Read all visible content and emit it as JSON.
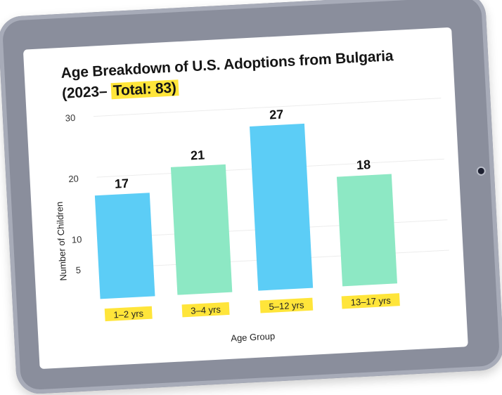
{
  "chart_data": {
    "type": "bar",
    "title": "Age Breakdown of U.S. Adoptions from Bulgaria (2023–",
    "title_highlight": "Total: 83)",
    "categories": [
      "1–2 yrs",
      "3–4 yrs",
      "5–12 yrs",
      "13–17 yrs"
    ],
    "values": [
      17,
      21,
      27,
      18
    ],
    "data_labels": [
      "17",
      "21",
      "27",
      "18"
    ],
    "bar_colors": [
      "#5ccdf6",
      "#8de8c4",
      "#5ccdf6",
      "#8de8c4"
    ],
    "xlabel": "Age Group",
    "ylabel": "Number of Children",
    "y_ticks": [
      "5",
      "10",
      "20",
      "30"
    ],
    "ylim": [
      0,
      30
    ],
    "grid": true,
    "highlight_color": "#ffe53a"
  }
}
